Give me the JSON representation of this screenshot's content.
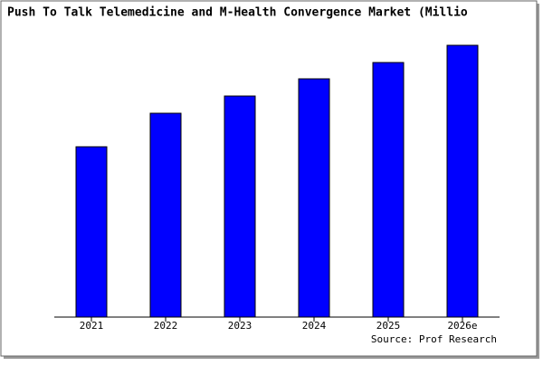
{
  "chart_data": {
    "type": "bar",
    "title": "Push To Talk Telemedicine and M-Health Convergence Market (Millio",
    "categories": [
      "2021",
      "2022",
      "2023",
      "2024",
      "2025",
      "2026e"
    ],
    "values": [
      188,
      225,
      244,
      263,
      281,
      300
    ],
    "color": "#0000ff",
    "ylim": [
      0,
      305
    ],
    "source": "Source: Prof Research"
  }
}
